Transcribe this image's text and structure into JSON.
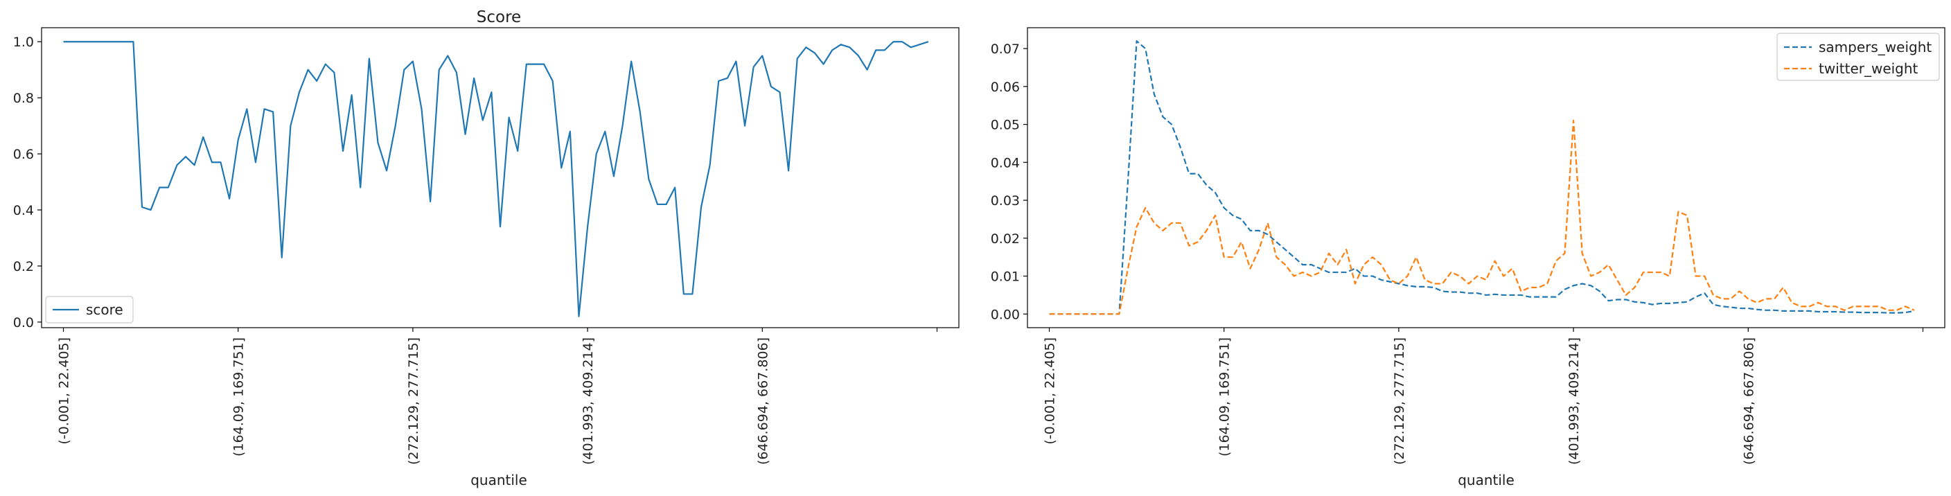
{
  "chart_data": [
    {
      "type": "line",
      "title": "Score",
      "xlabel": "quantile",
      "ylabel": "",
      "ylim": [
        -0.02,
        1.05
      ],
      "yticks": [
        0.0,
        0.2,
        0.4,
        0.6,
        0.8,
        1.0
      ],
      "ytick_labels": [
        "0.0",
        "0.2",
        "0.4",
        "0.6",
        "0.8",
        "1.0"
      ],
      "xlim": [
        -2.5,
        102.5
      ],
      "xticks": [
        0,
        20,
        40,
        60,
        80,
        100
      ],
      "xtick_labels": [
        "(-0.001, 22.405]",
        "(164.09, 169.751]",
        "(272.129, 277.715]",
        "(401.993, 409.214]",
        "(646.694, 667.806]",
        ""
      ],
      "legend_position": "lower-left",
      "grid": false,
      "series": [
        {
          "name": "score",
          "color": "#1f77b4",
          "dash": "solid",
          "values": [
            1.0,
            1.0,
            1.0,
            1.0,
            1.0,
            1.0,
            1.0,
            1.0,
            1.0,
            0.41,
            0.4,
            0.48,
            0.48,
            0.56,
            0.59,
            0.56,
            0.66,
            0.57,
            0.57,
            0.44,
            0.65,
            0.76,
            0.57,
            0.76,
            0.75,
            0.23,
            0.7,
            0.82,
            0.9,
            0.86,
            0.92,
            0.89,
            0.61,
            0.81,
            0.48,
            0.94,
            0.64,
            0.54,
            0.7,
            0.9,
            0.93,
            0.76,
            0.43,
            0.9,
            0.95,
            0.89,
            0.67,
            0.87,
            0.72,
            0.82,
            0.34,
            0.73,
            0.61,
            0.92,
            0.92,
            0.92,
            0.86,
            0.55,
            0.68,
            0.02,
            0.34,
            0.6,
            0.68,
            0.52,
            0.7,
            0.93,
            0.75,
            0.51,
            0.42,
            0.42,
            0.48,
            0.1,
            0.1,
            0.41,
            0.56,
            0.86,
            0.87,
            0.93,
            0.7,
            0.91,
            0.95,
            0.84,
            0.82,
            0.54,
            0.94,
            0.98,
            0.96,
            0.92,
            0.97,
            0.99,
            0.98,
            0.95,
            0.9,
            0.97,
            0.97,
            1.0,
            1.0,
            0.98,
            0.99,
            1.0
          ]
        }
      ]
    },
    {
      "type": "line",
      "title": "",
      "xlabel": "quantile",
      "ylabel": "",
      "ylim": [
        -0.0036,
        0.0755
      ],
      "yticks": [
        0.0,
        0.01,
        0.02,
        0.03,
        0.04,
        0.05,
        0.06,
        0.07
      ],
      "ytick_labels": [
        "0.00",
        "0.01",
        "0.02",
        "0.03",
        "0.04",
        "0.05",
        "0.06",
        "0.07"
      ],
      "xlim": [
        -2.5,
        102.5
      ],
      "xticks": [
        0,
        20,
        40,
        60,
        80,
        100
      ],
      "xtick_labels": [
        "(-0.001, 22.405]",
        "(164.09, 169.751]",
        "(272.129, 277.715]",
        "(401.993, 409.214]",
        "(646.694, 667.806]",
        ""
      ],
      "legend_position": "upper-right",
      "grid": false,
      "series": [
        {
          "name": "sampers_weight",
          "color": "#1f77b4",
          "dash": "dashed",
          "values": [
            0,
            0,
            0,
            0,
            0,
            0,
            0,
            0,
            0,
            0.035,
            0.072,
            0.07,
            0.058,
            0.052,
            0.05,
            0.044,
            0.037,
            0.037,
            0.034,
            0.032,
            0.028,
            0.026,
            0.025,
            0.022,
            0.022,
            0.021,
            0.019,
            0.017,
            0.015,
            0.013,
            0.013,
            0.012,
            0.011,
            0.011,
            0.011,
            0.012,
            0.01,
            0.01,
            0.009,
            0.0085,
            0.008,
            0.0075,
            0.0072,
            0.0072,
            0.007,
            0.006,
            0.0058,
            0.0058,
            0.0055,
            0.0055,
            0.005,
            0.0052,
            0.005,
            0.005,
            0.005,
            0.0045,
            0.0045,
            0.0045,
            0.0045,
            0.0065,
            0.0075,
            0.008,
            0.0075,
            0.006,
            0.0035,
            0.0038,
            0.0038,
            0.0032,
            0.003,
            0.0025,
            0.0028,
            0.0028,
            0.003,
            0.0032,
            0.0045,
            0.0055,
            0.0025,
            0.002,
            0.0018,
            0.0015,
            0.0015,
            0.0012,
            0.001,
            0.001,
            0.0008,
            0.0008,
            0.0008,
            0.0008,
            0.0006,
            0.0006,
            0.0006,
            0.0005,
            0.0005,
            0.0004,
            0.0004,
            0.0004,
            0.0003,
            0.0003,
            0.0004,
            0.0008
          ]
        },
        {
          "name": "twitter_weight",
          "color": "#ff7f0e",
          "dash": "dashed",
          "values": [
            0,
            0,
            0,
            0,
            0,
            0,
            0,
            0,
            0,
            0.012,
            0.023,
            0.028,
            0.024,
            0.022,
            0.024,
            0.024,
            0.018,
            0.019,
            0.022,
            0.026,
            0.015,
            0.015,
            0.019,
            0.012,
            0.017,
            0.024,
            0.015,
            0.013,
            0.01,
            0.011,
            0.01,
            0.011,
            0.016,
            0.013,
            0.017,
            0.008,
            0.013,
            0.015,
            0.013,
            0.009,
            0.008,
            0.01,
            0.015,
            0.009,
            0.008,
            0.008,
            0.011,
            0.01,
            0.008,
            0.01,
            0.009,
            0.014,
            0.01,
            0.012,
            0.006,
            0.007,
            0.007,
            0.008,
            0.014,
            0.016,
            0.051,
            0.016,
            0.01,
            0.011,
            0.013,
            0.009,
            0.005,
            0.007,
            0.011,
            0.011,
            0.011,
            0.01,
            0.027,
            0.026,
            0.01,
            0.01,
            0.005,
            0.004,
            0.004,
            0.006,
            0.004,
            0.003,
            0.004,
            0.004,
            0.007,
            0.003,
            0.002,
            0.002,
            0.003,
            0.002,
            0.002,
            0.001,
            0.002,
            0.002,
            0.002,
            0.002,
            0.001,
            0.001,
            0.002,
            0.001
          ]
        }
      ]
    }
  ]
}
